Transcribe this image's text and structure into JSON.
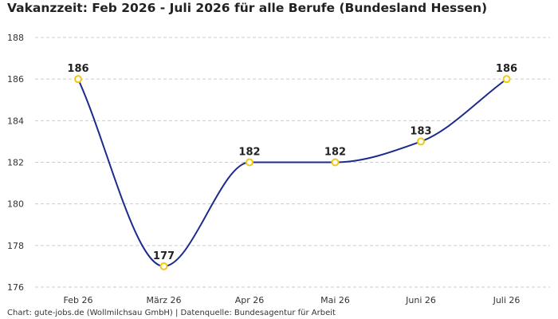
{
  "title": "Vakanzzeit: Feb 2026 - Juli 2026 für alle Berufe (Bundesland Hessen)",
  "footer": "Chart: gute-jobs.de (Wollmilchsau GmbH) | Datenquelle: Bundesagentur für Arbeit",
  "colors": {
    "line": "#1f2b8c",
    "marker_stroke": "#f2c811",
    "marker_fill": "#ffffff",
    "grid": "#cccccc",
    "text": "#222222"
  },
  "chart_data": {
    "type": "line",
    "title": "Vakanzzeit: Feb 2026 - Juli 2026 für alle Berufe (Bundesland Hessen)",
    "xlabel": "",
    "ylabel": "",
    "categories": [
      "Feb 26",
      "März 26",
      "Apr 26",
      "Mai 26",
      "Juni 26",
      "Juli 26"
    ],
    "series": [
      {
        "values": [
          186,
          177,
          182,
          182,
          183,
          186
        ],
        "data_labels": [
          "186",
          "177",
          "182",
          "182",
          "183",
          "186"
        ]
      }
    ],
    "ylim": [
      176,
      188
    ],
    "yticks": [
      176,
      178,
      180,
      182,
      184,
      186,
      188
    ],
    "ytick_labels": [
      "176",
      "178",
      "180",
      "182",
      "184",
      "186",
      "188"
    ],
    "grid": "horizontal dashed",
    "legend": "none",
    "curve": "smooth (monotone)"
  }
}
